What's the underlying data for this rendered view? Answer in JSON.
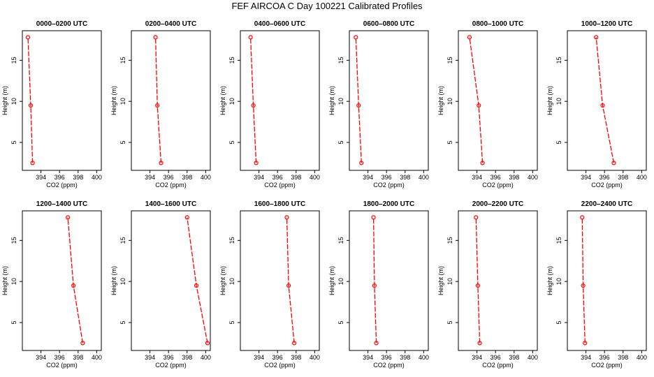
{
  "title": "FEF AIRCOA C  Day 100221  Calibrated Profiles",
  "colors": {
    "profile": "#ff0000",
    "frame": "#000000"
  },
  "chart_data": {
    "type": "line",
    "xlabel": "CO2 (ppm)",
    "ylabel": "Height (m)",
    "xlim": [
      392,
      400.5
    ],
    "ylim": [
      1.6,
      18.6
    ],
    "xticks": [
      394,
      396,
      398,
      400
    ],
    "yticks": [
      5,
      10,
      15
    ],
    "heights": [
      2.5,
      9.5,
      17.8
    ],
    "panels": [
      {
        "title": "0000–0200 UTC",
        "co2": [
          393.1,
          392.9,
          392.6
        ]
      },
      {
        "title": "0200–0400 UTC",
        "co2": [
          395.2,
          394.8,
          394.6
        ]
      },
      {
        "title": "0400–0600 UTC",
        "co2": [
          393.7,
          393.4,
          393.1
        ]
      },
      {
        "title": "0600–0800 UTC",
        "co2": [
          393.3,
          393.0,
          392.7
        ]
      },
      {
        "title": "0800–1000 UTC",
        "co2": [
          394.6,
          394.2,
          393.2
        ]
      },
      {
        "title": "1000–1200 UTC",
        "co2": [
          397.0,
          395.8,
          395.1
        ]
      },
      {
        "title": "1200–1400 UTC",
        "co2": [
          398.5,
          397.5,
          396.9
        ]
      },
      {
        "title": "1400–1600 UTC",
        "co2": [
          400.2,
          399.0,
          398.0
        ]
      },
      {
        "title": "1600–1800 UTC",
        "co2": [
          397.8,
          397.2,
          397.0
        ]
      },
      {
        "title": "1800–2000 UTC",
        "co2": [
          394.9,
          394.7,
          394.6
        ]
      },
      {
        "title": "2000–2200 UTC",
        "co2": [
          394.3,
          394.1,
          393.9
        ]
      },
      {
        "title": "2200–2400 UTC",
        "co2": [
          393.9,
          393.7,
          393.6
        ]
      }
    ]
  }
}
